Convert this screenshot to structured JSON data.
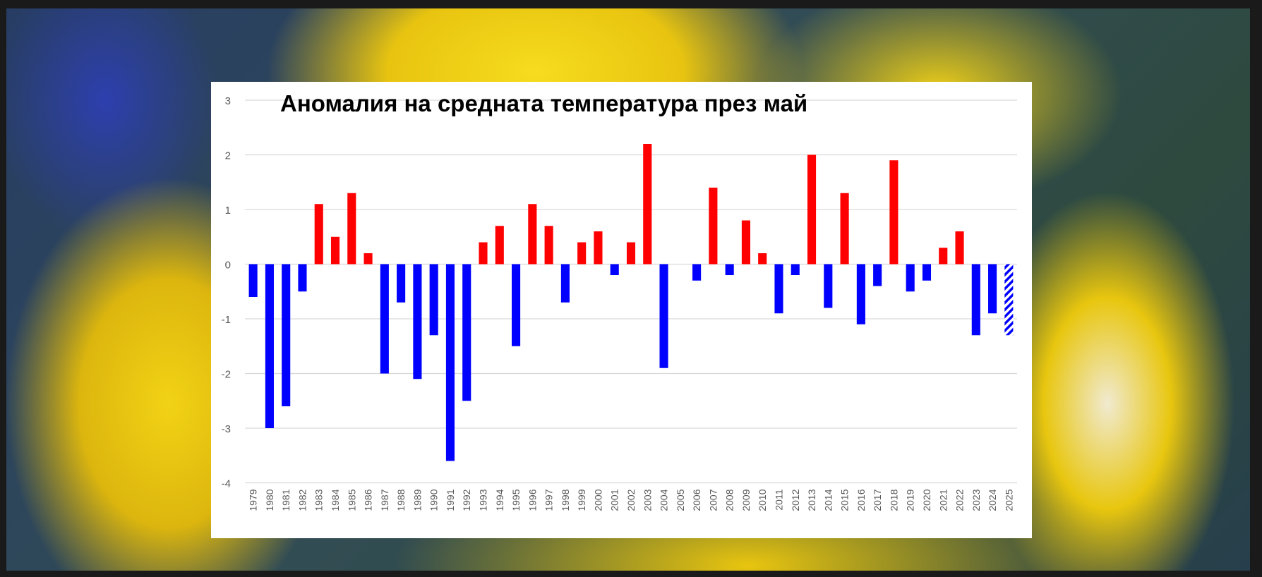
{
  "chart_data": {
    "type": "bar",
    "title": "Аномалия на средната температура през май",
    "xlabel": "",
    "ylabel": "",
    "ylim": [
      -4,
      3
    ],
    "yticks": [
      3,
      2,
      1,
      0,
      -1,
      -2,
      -3,
      -4
    ],
    "grid": true,
    "positive_color": "#ff0000",
    "negative_color": "#0000ff",
    "provisional_category": "2025",
    "provisional_style": "hatched",
    "categories": [
      "1979",
      "1980",
      "1981",
      "1982",
      "1983",
      "1984",
      "1985",
      "1986",
      "1987",
      "1988",
      "1989",
      "1990",
      "1991",
      "1992",
      "1993",
      "1994",
      "1995",
      "1996",
      "1997",
      "1998",
      "1999",
      "2000",
      "2001",
      "2002",
      "2003",
      "2004",
      "2005",
      "2006",
      "2007",
      "2008",
      "2009",
      "2010",
      "2011",
      "2012",
      "2013",
      "2014",
      "2015",
      "2016",
      "2017",
      "2018",
      "2019",
      "2020",
      "2021",
      "2022",
      "2023",
      "2024",
      "2025"
    ],
    "values": [
      -0.6,
      -3.0,
      -2.6,
      -0.5,
      1.1,
      0.5,
      1.3,
      0.2,
      -2.0,
      -0.7,
      -2.1,
      -1.3,
      -3.6,
      -2.5,
      0.4,
      0.7,
      -1.5,
      1.1,
      0.7,
      -0.7,
      0.4,
      0.6,
      -0.2,
      0.4,
      2.2,
      -1.9,
      0.0,
      -0.3,
      1.4,
      -0.2,
      0.8,
      0.2,
      -0.9,
      -0.2,
      2.0,
      -0.8,
      1.3,
      -1.1,
      -0.4,
      1.9,
      -0.5,
      -0.3,
      0.3,
      0.6,
      -1.3,
      -0.9,
      -1.3
    ]
  }
}
